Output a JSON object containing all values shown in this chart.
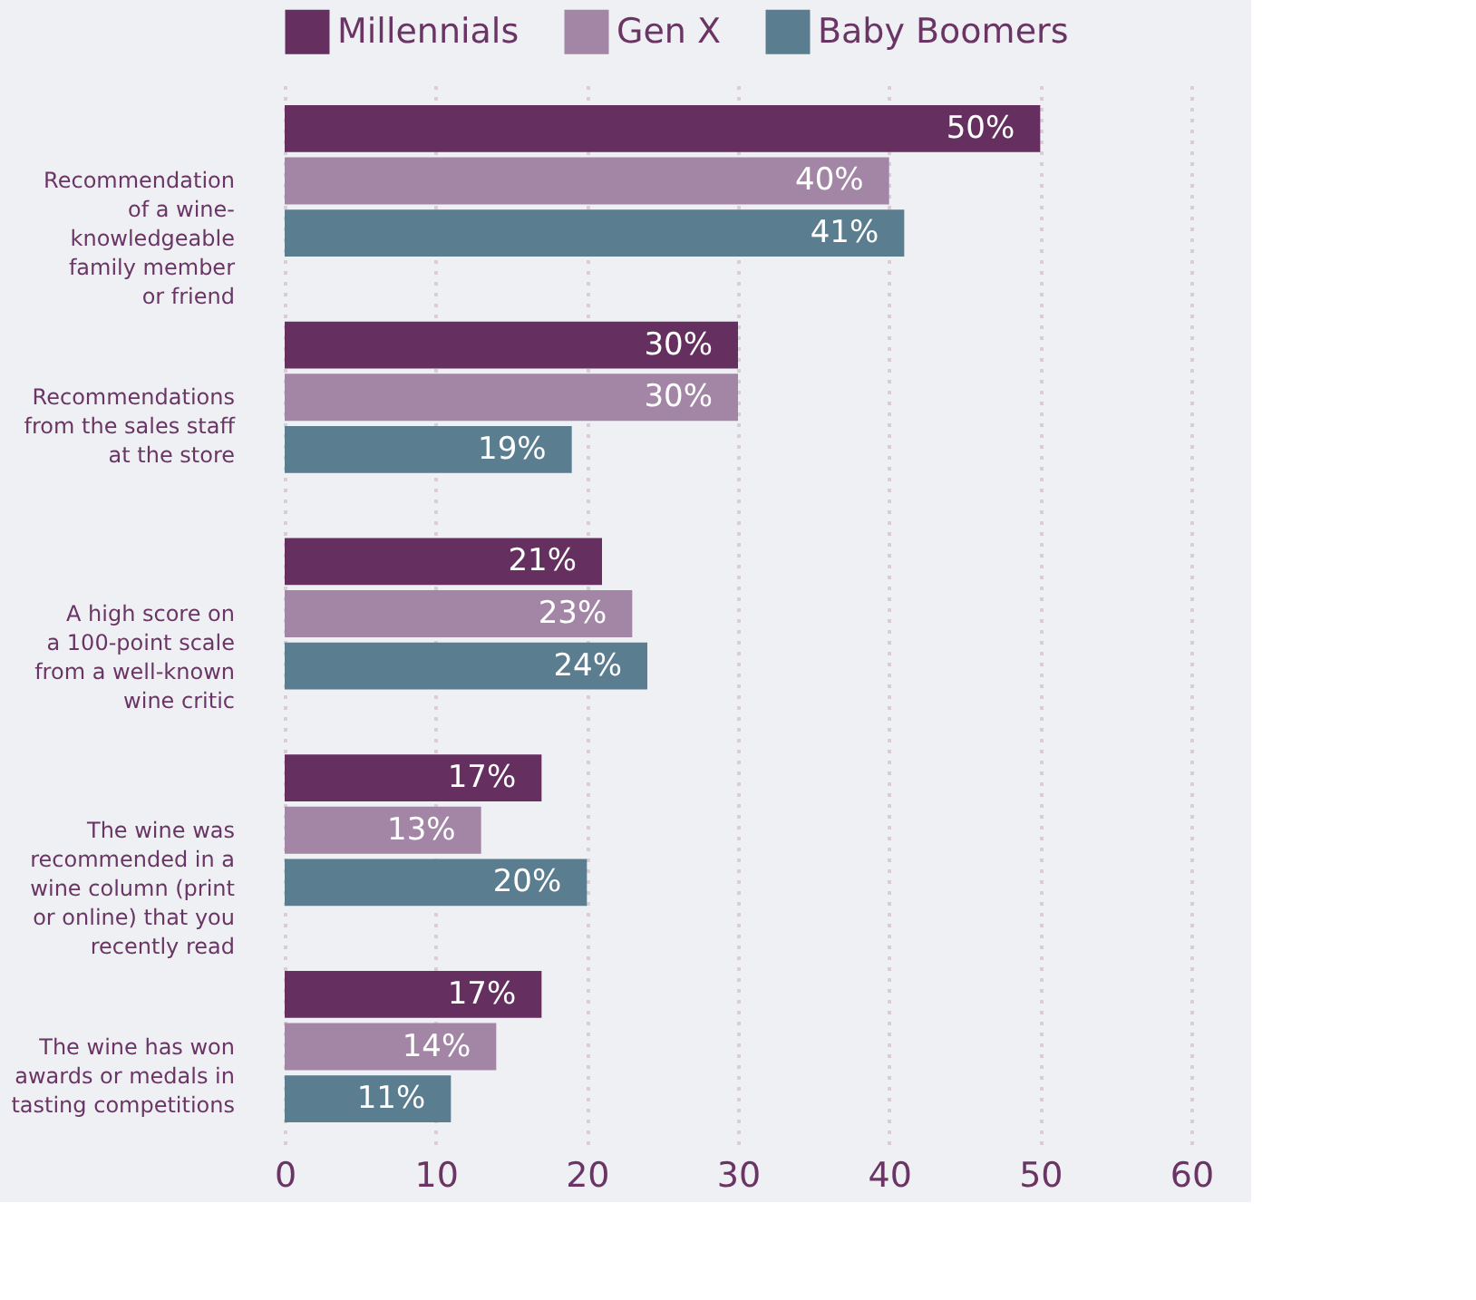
{
  "chart_data": {
    "type": "bar",
    "orientation": "horizontal",
    "categories": [
      "Recommendation\nof a wine-\nknowledgeable\nfamily member\nor friend",
      "Recommendations\nfrom the sales staff\nat the store",
      "A high score on\na 100-point scale\nfrom a well-known\nwine critic",
      "The wine was\nrecommended in a\nwine column (print\nor online) that you\nrecently read",
      "The wine has won\nawards or medals in\ntasting competitions"
    ],
    "series": [
      {
        "name": "Millennials",
        "color": "#65305f",
        "values": [
          50,
          30,
          21,
          17,
          17
        ]
      },
      {
        "name": "Gen X",
        "color": "#a386a6",
        "values": [
          40,
          30,
          23,
          13,
          14
        ]
      },
      {
        "name": "Baby Boomers",
        "color": "#5b7d90",
        "values": [
          41,
          19,
          24,
          20,
          11
        ]
      }
    ],
    "value_labels": [
      [
        "50%",
        "30%",
        "21%",
        "17%",
        "17%"
      ],
      [
        "40%",
        "30%",
        "23%",
        "13%",
        "14%"
      ],
      [
        "41%",
        "19%",
        "24%",
        "20%",
        "11%"
      ]
    ],
    "xlim": [
      0,
      60
    ],
    "xticks": [
      0,
      10,
      20,
      30,
      40,
      50,
      60
    ],
    "grid": "x",
    "legend": "top"
  }
}
